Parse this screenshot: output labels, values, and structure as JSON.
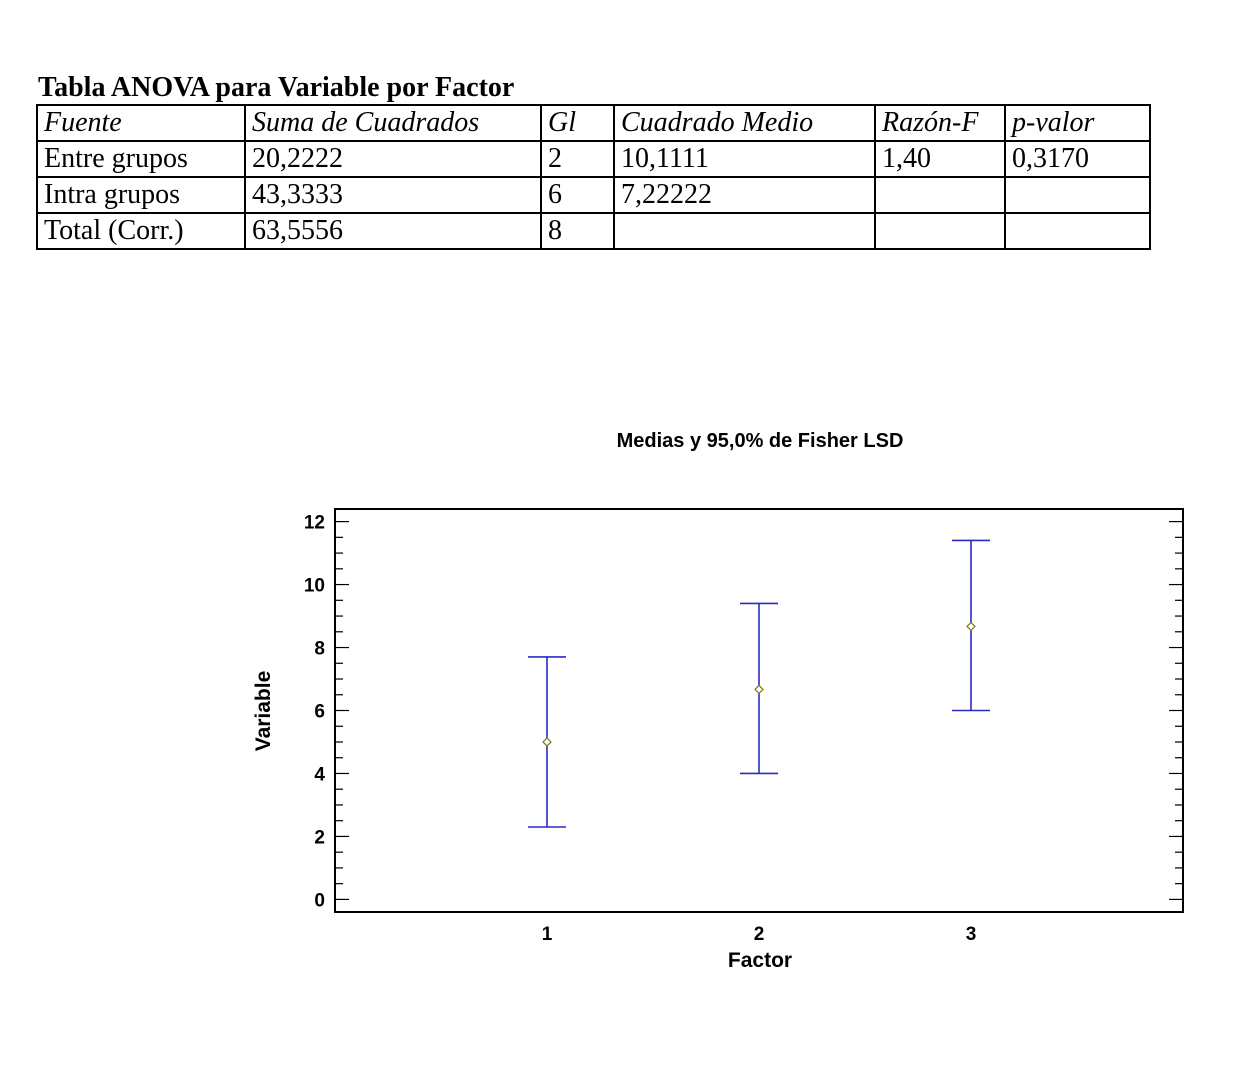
{
  "anova": {
    "title": "Tabla ANOVA para Variable por Factor",
    "headers": [
      "Fuente",
      "Suma de Cuadrados",
      "Gl",
      "Cuadrado Medio",
      "Razón-F",
      "p-valor"
    ],
    "rows": [
      [
        "Entre grupos",
        "20,2222",
        "2",
        "10,1111",
        "1,40",
        "0,3170"
      ],
      [
        "Intra grupos",
        "43,3333",
        "6",
        "7,22222",
        "",
        ""
      ],
      [
        "Total (Corr.)",
        "63,5556",
        "8",
        "",
        "",
        ""
      ]
    ]
  },
  "chart_data": {
    "type": "scatter",
    "title": "Medias y 95,0% de Fisher LSD",
    "xlabel": "Factor",
    "ylabel": "Variable",
    "categories": [
      "1",
      "2",
      "3"
    ],
    "means": [
      5.0,
      6.67,
      8.67
    ],
    "lower": [
      2.3,
      4.0,
      6.0
    ],
    "upper": [
      7.7,
      9.4,
      11.4
    ],
    "xlim": [
      0,
      4
    ],
    "ylim": [
      -0.4,
      12.4
    ],
    "yticks": [
      0,
      2,
      4,
      6,
      8,
      10,
      12
    ],
    "grid": false,
    "colors": {
      "errorbar": "#2b2bc4",
      "marker": "#7a7a1a",
      "axis": "#000000"
    }
  }
}
